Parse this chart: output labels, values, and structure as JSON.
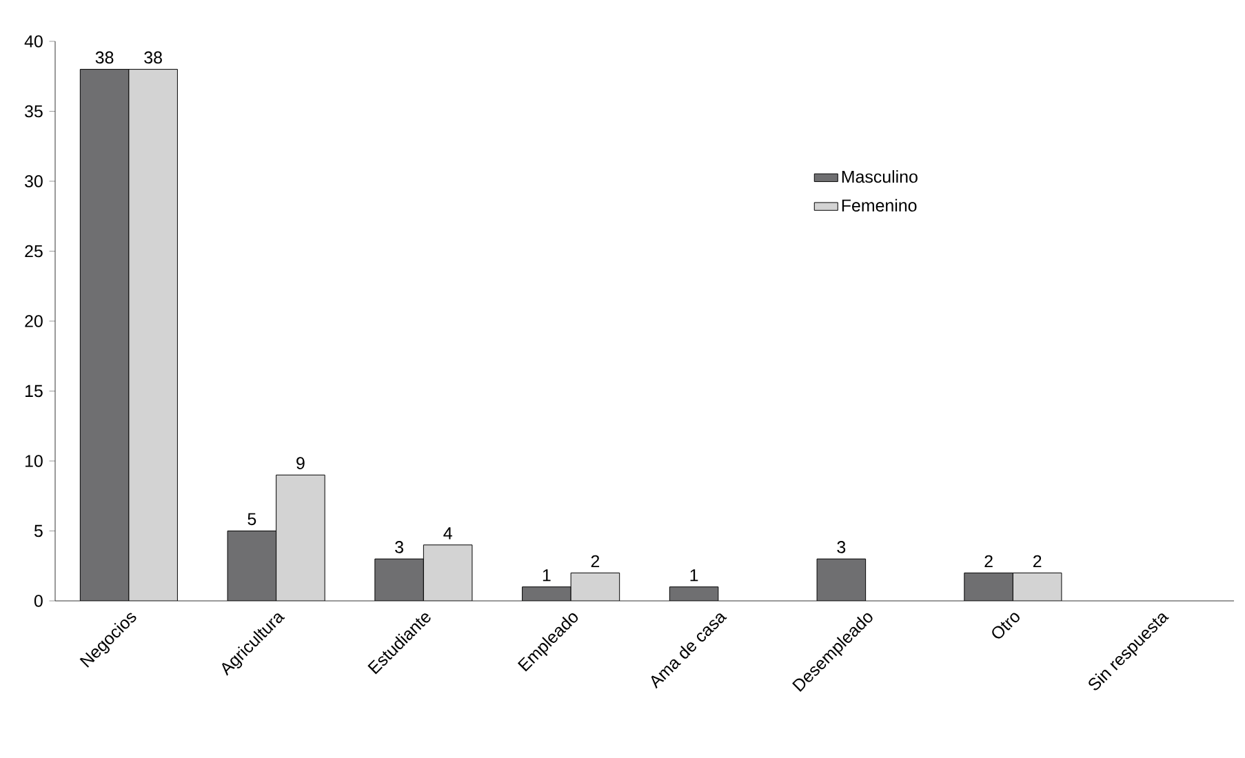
{
  "chart_data": {
    "type": "bar",
    "categories": [
      "Negocios",
      "Agricultura",
      "Estudiante",
      "Empleado",
      "Ama de casa",
      "Desempleado",
      "Otro",
      "Sin respuesta"
    ],
    "series": [
      {
        "name": "Masculino",
        "color": "#6f6f71",
        "values": [
          38,
          5,
          3,
          1,
          1,
          3,
          2,
          null
        ]
      },
      {
        "name": "Femenino",
        "color": "#d3d3d3",
        "values": [
          38,
          9,
          4,
          2,
          null,
          null,
          2,
          null
        ]
      }
    ],
    "ylim": [
      0,
      40
    ],
    "yticks": [
      0,
      5,
      10,
      15,
      20,
      25,
      30,
      35,
      40
    ],
    "data_labels": true,
    "legend": "right",
    "grid": false
  }
}
